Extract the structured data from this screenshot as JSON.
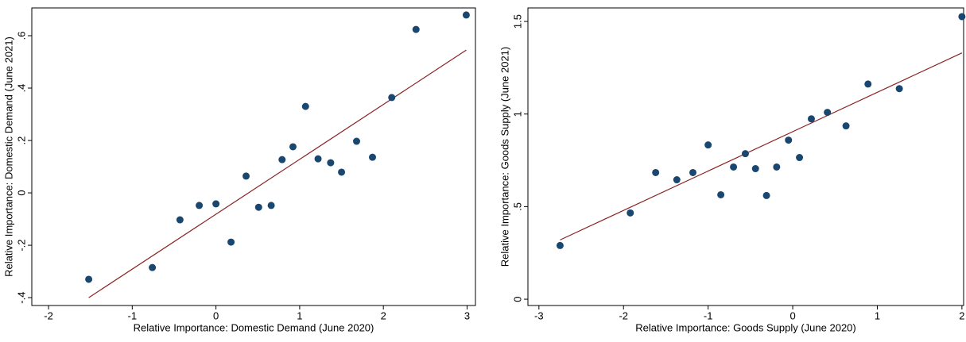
{
  "chart_data": [
    {
      "type": "scatter",
      "x_label": "Relative Importance: Domestic Demand (June 2020)",
      "y_label": "Relative Importance: Domestic Demand (June 2021)",
      "x": [
        -1.52,
        -0.76,
        -0.43,
        -0.2,
        0.0,
        0.18,
        0.36,
        0.51,
        0.66,
        0.79,
        0.92,
        1.07,
        1.22,
        1.37,
        1.5,
        1.68,
        1.87,
        2.1,
        2.39,
        2.99
      ],
      "y": [
        -0.33,
        -0.285,
        -0.103,
        -0.048,
        -0.042,
        -0.188,
        0.064,
        -0.055,
        -0.048,
        0.127,
        0.176,
        0.33,
        0.13,
        0.115,
        0.079,
        0.197,
        0.136,
        0.364,
        0.624,
        0.679
      ],
      "color": "#1a476f",
      "fit": {
        "x": [
          -1.52,
          2.99
        ],
        "y": [
          -0.4,
          0.545
        ],
        "color": "#8b2323"
      },
      "xlim": [
        -2.2,
        3.1
      ],
      "ylim": [
        -0.43,
        0.706
      ],
      "xticks": [
        -2,
        -1,
        0,
        1,
        2,
        3
      ],
      "yticks": [
        {
          "value": -0.4,
          "label": "-.4"
        },
        {
          "value": -0.2,
          "label": "-.2"
        },
        0,
        {
          "value": 0.2,
          "label": ".2"
        },
        {
          "value": 0.4,
          "label": ".4"
        },
        {
          "value": 0.6,
          "label": ".6"
        }
      ]
    },
    {
      "type": "scatter",
      "x_label": "Relative Importance: Goods Supply (June 2020)",
      "y_label": "Relative Importance: Goods Supply (June 2021)",
      "x": [
        -2.75,
        -1.92,
        -1.62,
        -1.37,
        -1.18,
        -1.0,
        -0.85,
        -0.7,
        -0.56,
        -0.44,
        -0.31,
        -0.19,
        -0.05,
        0.08,
        0.22,
        0.41,
        0.63,
        0.89,
        1.26,
        2.0
      ],
      "y": [
        0.29,
        0.466,
        0.684,
        0.645,
        0.684,
        0.833,
        0.564,
        0.714,
        0.786,
        0.705,
        0.56,
        0.714,
        0.859,
        0.765,
        0.974,
        1.009,
        0.936,
        1.162,
        1.137,
        1.526
      ],
      "color": "#1a476f",
      "fit": {
        "x": [
          -2.75,
          2.0
        ],
        "y": [
          0.32,
          1.33
        ],
        "color": "#8b2323"
      },
      "xlim": [
        -3.13,
        2.02
      ],
      "ylim": [
        -0.034,
        1.573
      ],
      "xticks": [
        -3,
        -2,
        -1,
        0,
        1,
        2
      ],
      "yticks": [
        0,
        {
          "value": 0.5,
          "label": ".5"
        },
        1,
        1.5
      ]
    }
  ]
}
